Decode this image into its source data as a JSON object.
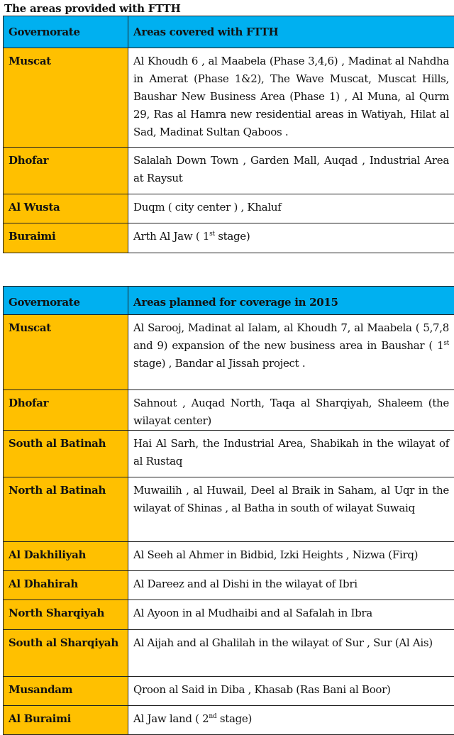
{
  "title": "The areas provided with FTTH",
  "table1": {
    "headers": [
      "Governorate",
      "Areas covered with FTTH"
    ],
    "rows": [
      {
        "gov": "Muscat",
        "areas": "Al Khoudh 6 , al Maabela (Phase 3,4,6) , Madinat al Nahdha in Amerat (Phase 1&2), The Wave Muscat, Muscat Hills, Baushar New Business Area (Phase 1) , Al Muna, al Qurm 29, Ras al Hamra new residential areas in Watiyah, Hilat al Sad, Madinat Sultan Qaboos ."
      },
      {
        "gov": "Dhofar",
        "areas": "Salalah  Down Town , Garden Mall, Auqad , Industrial Area at Raysut"
      },
      {
        "gov": "Al Wusta",
        "areas": "Duqm ( city center ) , Khaluf"
      },
      {
        "gov": "Buraimi",
        "areas": "Arth Al Jaw ( 1",
        "sup": "st",
        "after": " stage)"
      }
    ]
  },
  "table2": {
    "headers": [
      "Governorate",
      "Areas planned for coverage in 2015"
    ],
    "rows": [
      {
        "gov": "Muscat",
        "areas": "Al Sarooj, Madinat al Ialam, al Khoudh 7, al Maabela ( 5,7,8 and 9) expansion of the new business area in Baushar ( 1",
        "sup": "st",
        "after": " stage) , Bandar al Jissah project ."
      },
      {
        "gov": "Dhofar",
        "areas": "Sahnout , Auqad North, Taqa al Sharqiyah, Shaleem (the wilayat center)"
      },
      {
        "gov": "South al Batinah",
        "areas": "Hai Al Sarh, the Industrial Area, Shabikah in the wilayat of al Rustaq"
      },
      {
        "gov": "North al Batinah",
        "areas": "Muwailih , al Huwail, Deel al Braik in Saham, al Uqr in the wilayat of Shinas , al Batha in south  of wilayat Suwaiq"
      },
      {
        "gov": "Al Dakhiliyah",
        "areas": "Al Seeh al Ahmer in Bidbid, Izki Heights , Nizwa (Firq)"
      },
      {
        "gov": "Al Dhahirah",
        "areas": "Al Dareez and al Dishi in the wilayat of Ibri"
      },
      {
        "gov": "North Sharqiyah",
        "areas": "Al Ayoon in al Mudhaibi and al Safalah in Ibra"
      },
      {
        "gov": "South al Sharqiyah",
        "areas": "Al Aijah and al Ghalilah in the wilayat of Sur , Sur (Al Ais)"
      },
      {
        "gov": "Musandam",
        "areas": "Qroon al Said in Diba , Khasab (Ras Bani al Boor)"
      },
      {
        "gov": "Al Buraimi",
        "areas": "Al Jaw land ( 2",
        "sup": "nd",
        "after": " stage)"
      }
    ]
  },
  "colors": {
    "header": "#00b0f0",
    "governorate": "#ffc000"
  }
}
